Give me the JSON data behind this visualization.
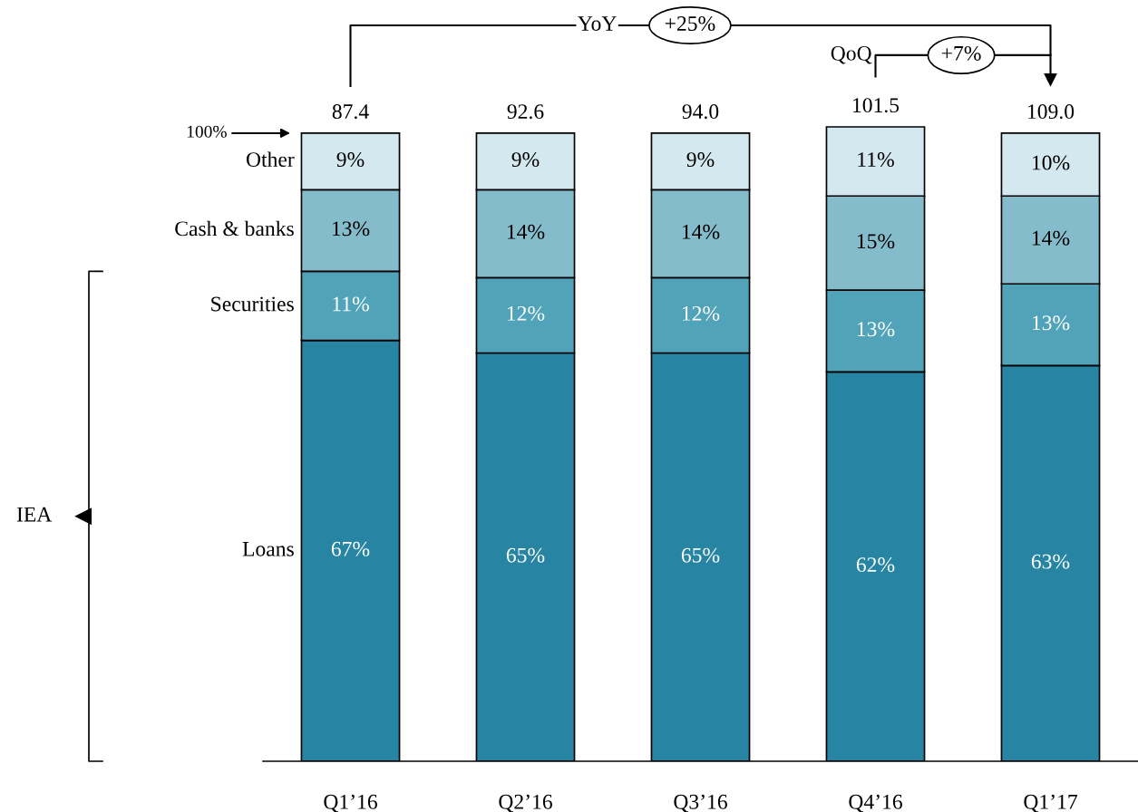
{
  "chart_data": {
    "type": "bar",
    "stacked": true,
    "tick_labels": "x",
    "categories": [
      "Q1’16",
      "Q2’16",
      "Q3’16",
      "Q4’16",
      "Q1’17"
    ],
    "series": [
      {
        "name": "Loans",
        "color": "#2785a3",
        "values": [
          67,
          65,
          65,
          62,
          63
        ],
        "value_labels": [
          "67%",
          "65%",
          "65%",
          "62%",
          "63%"
        ]
      },
      {
        "name": "Securities",
        "color": "#50a3b8",
        "values": [
          11,
          12,
          12,
          13,
          13
        ],
        "value_labels": [
          "11%",
          "12%",
          "12%",
          "13%",
          "13%"
        ]
      },
      {
        "name": "Cash & banks",
        "color": "#85bccb",
        "values": [
          13,
          14,
          14,
          15,
          14
        ],
        "value_labels": [
          "13%",
          "14%",
          "14%",
          "15%",
          "14%"
        ]
      },
      {
        "name": "Other",
        "color": "#d4e8ef",
        "values": [
          9,
          9,
          9,
          11,
          10
        ],
        "value_labels": [
          "9%",
          "9%",
          "9%",
          "11%",
          "10%"
        ]
      }
    ],
    "annotations": [
      "87.4",
      "92.6",
      "94.0",
      "101.5",
      "109.0",
      "100%",
      "YoY",
      "+25%",
      "QoQ",
      "+7%",
      "IEA"
    ]
  }
}
